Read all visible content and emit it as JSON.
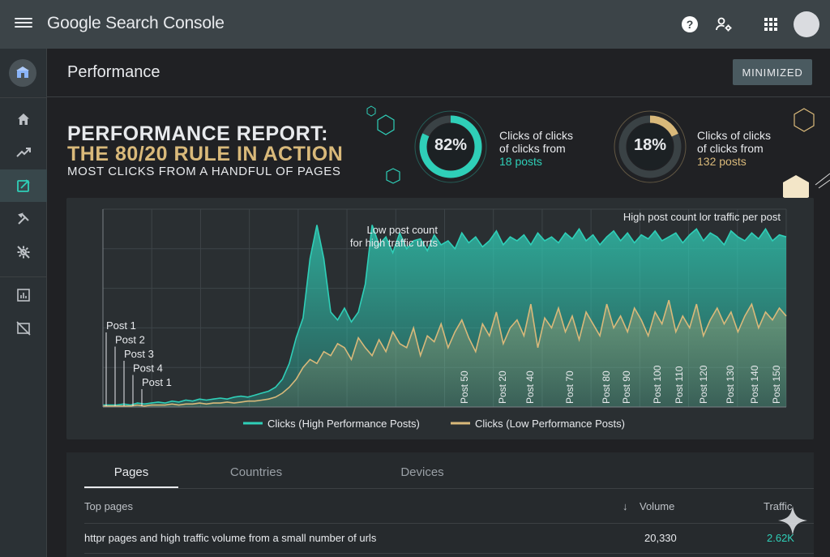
{
  "app": {
    "brand": "Google Search Console"
  },
  "header": {
    "title": "Performance",
    "minimize_label": "MINIMIZED"
  },
  "report": {
    "line1": "PERFORMANCE REPORT:",
    "line2": "THE 80/20 RULE IN ACTION",
    "line3": "MOST CLICKS FROM A HANDFUL OF PAGES"
  },
  "stats": [
    {
      "percent_label": "82%",
      "percent": 82,
      "line1": "Clicks of clicks",
      "line2": "of clicks from",
      "line3": "18 posts",
      "color": "#2fcfb8"
    },
    {
      "percent_label": "18%",
      "percent": 18,
      "line1": "Clicks of clicks",
      "line2": "of clicks from",
      "line3": "132 posts",
      "color": "#d9b97a"
    }
  ],
  "sidebar": {
    "items": [
      {
        "icon": "home-icon"
      },
      {
        "icon": "trending-icon"
      },
      {
        "icon": "edit-icon"
      },
      {
        "icon": "tools-icon"
      },
      {
        "icon": "settings-icon"
      },
      {
        "icon": "report-icon"
      },
      {
        "icon": "hide-icon"
      }
    ]
  },
  "chart_data": {
    "type": "area",
    "annotations": {
      "left": [
        "Low post count",
        "for high traffic urrts"
      ],
      "right": "High post count lor traffic per post"
    },
    "post_labels_left": [
      "Post 1",
      "Post 2",
      "Post 3",
      "Post 4",
      "Post 1"
    ],
    "post_labels_bottom": [
      "Post 50",
      "Post 20",
      "Post 40",
      "Post 70",
      "Post 80",
      "Post 90",
      "Post 100",
      "Post 110",
      "Post 120",
      "Post 130",
      "Post 140",
      "Post 150"
    ],
    "series": [
      {
        "name": "Clicks (High Performance Posts)",
        "color": "#2fcfb8",
        "values": [
          1,
          1,
          1,
          1.5,
          1,
          2,
          1.5,
          2,
          2.5,
          2,
          3,
          2.5,
          3.5,
          3,
          4,
          3.5,
          4,
          4.5,
          4,
          5,
          5.5,
          5,
          6,
          7,
          8,
          10,
          14,
          22,
          35,
          45,
          75,
          92,
          75,
          48,
          44,
          50,
          43,
          48,
          62,
          92,
          82,
          86,
          78,
          88,
          80,
          84,
          85,
          79,
          87,
          82,
          84,
          80,
          88,
          83,
          86,
          81,
          84,
          89,
          82,
          86,
          84,
          87,
          82,
          88,
          84,
          86,
          83,
          88,
          85,
          90,
          84,
          87,
          82,
          86,
          89,
          84,
          88,
          83,
          87,
          85,
          89,
          84,
          86,
          88,
          83,
          87,
          90,
          84,
          88,
          86,
          82,
          89,
          86,
          84,
          88,
          85,
          90,
          84,
          87,
          86
        ]
      },
      {
        "name": "Clicks (Low Performance Posts)",
        "color": "#d9b97a",
        "values": [
          0.5,
          0.5,
          0.5,
          0.5,
          0.5,
          1,
          0.5,
          1,
          1,
          1,
          1.5,
          1,
          1.5,
          1.5,
          2,
          1.5,
          2,
          2,
          2.5,
          2,
          2.5,
          3,
          3,
          3.5,
          4,
          5,
          7,
          10,
          14,
          20,
          24,
          22,
          28,
          26,
          32,
          30,
          24,
          35,
          30,
          26,
          34,
          28,
          38,
          32,
          30,
          40,
          26,
          36,
          33,
          42,
          30,
          38,
          44,
          35,
          28,
          42,
          36,
          48,
          32,
          40,
          44,
          36,
          52,
          30,
          45,
          40,
          50,
          38,
          46,
          34,
          48,
          42,
          36,
          52,
          40,
          46,
          38,
          50,
          44,
          36,
          48,
          42,
          54,
          38,
          46,
          40,
          52,
          36,
          44,
          50,
          42,
          48,
          38,
          46,
          52,
          40,
          48,
          44,
          50,
          46
        ]
      }
    ],
    "ylim": [
      0,
      100
    ],
    "legend": "bottom"
  },
  "table": {
    "tabs": [
      "Pages",
      "Countries",
      "Devices"
    ],
    "headers": {
      "page": "Top pages",
      "volume": "Volume",
      "traffic": "Traffic"
    },
    "rows": [
      {
        "page": "httpr pages and high traffic volume from a small number of urls",
        "volume": "20,330",
        "traffic": "2.62K"
      }
    ]
  }
}
